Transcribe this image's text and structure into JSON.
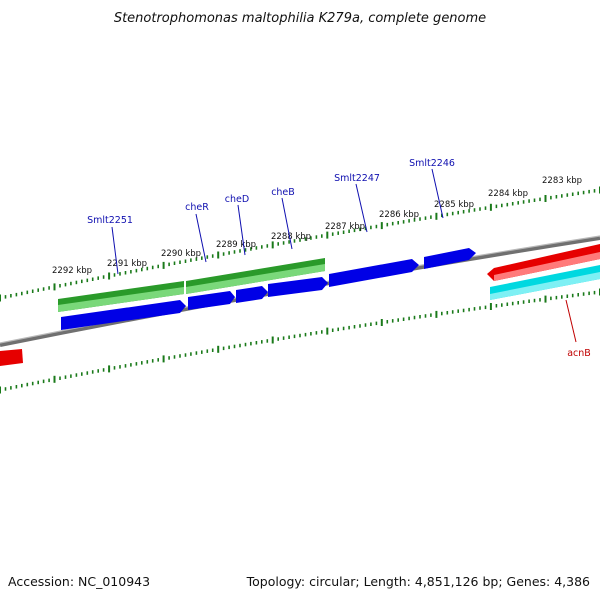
{
  "title": "Stenotrophomonas maltophilia K279a, complete genome",
  "footer": {
    "accession": "Accession: NC_010943",
    "summary": "Topology: circular; Length: 4,851,126 bp; Genes: 4,386"
  },
  "colors": {
    "forward_cds": "#0000e6",
    "reverse_cds": "#2a9a2a",
    "rna_red": "#e60000",
    "rna_cyan": "#00d8e0",
    "backbone": "#8a8a8a",
    "tick": "#1a7a1a",
    "gene_label_blue": "#1010b0",
    "gene_label_red": "#c00000"
  },
  "axis": {
    "ticks": [
      "2292 kbp",
      "2291 kbp",
      "2290 kbp",
      "2289 kbp",
      "2288 kbp",
      "2287 kbp",
      "2286 kbp",
      "2285 kbp",
      "2284 kbp",
      "2283 kbp"
    ]
  },
  "genes": [
    "Smlt2251",
    "cheR",
    "cheD",
    "cheB",
    "Smlt2247",
    "Smlt2246",
    "acnB"
  ]
}
